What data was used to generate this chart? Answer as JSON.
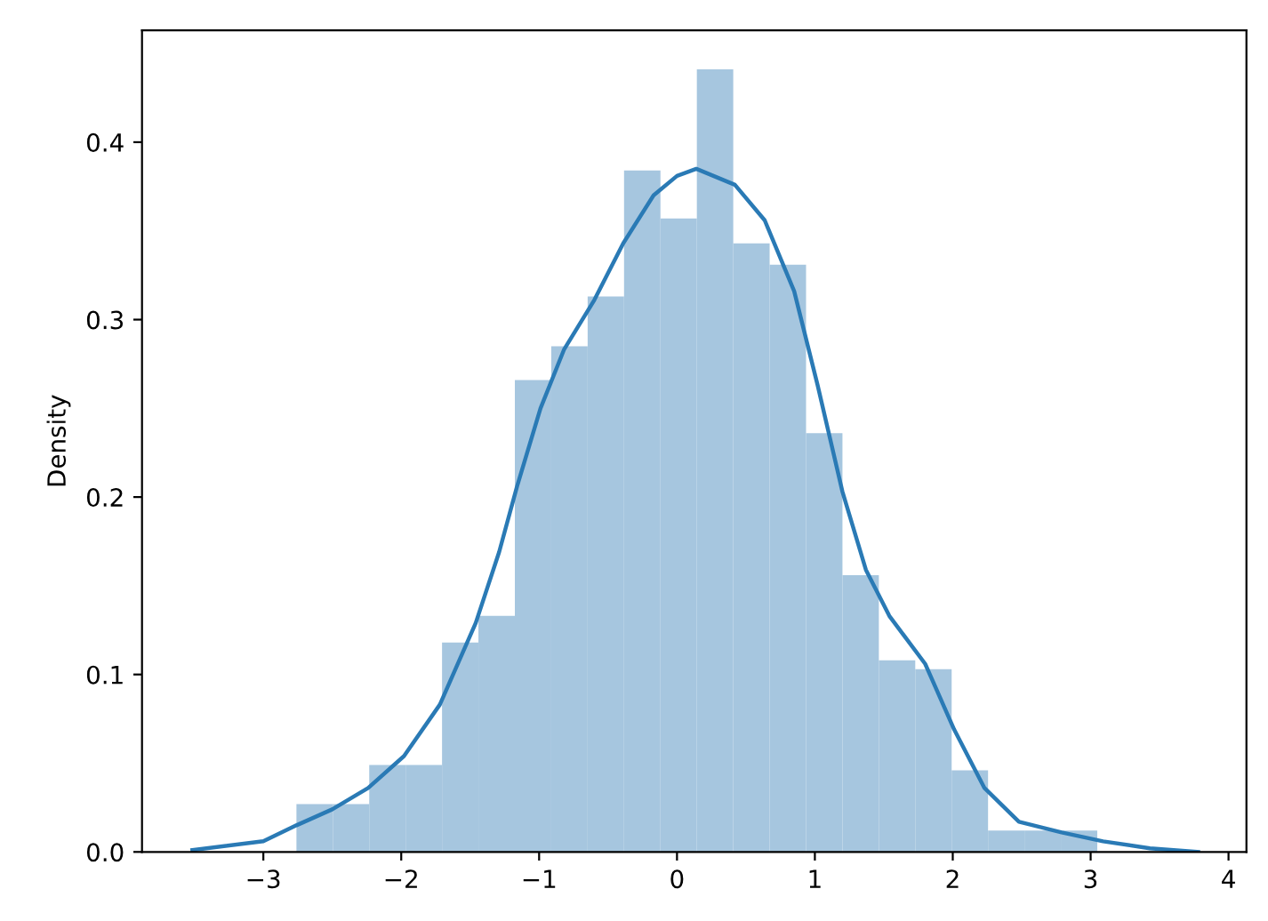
{
  "chart_data": {
    "type": "histogram",
    "ylabel": "Density",
    "xlim": [
      -3.88,
      4.13
    ],
    "ylim": [
      0,
      0.463
    ],
    "xticks": [
      {
        "value": -3,
        "label": "−3"
      },
      {
        "value": -2,
        "label": "−2"
      },
      {
        "value": -1,
        "label": "−1"
      },
      0,
      1,
      2,
      3,
      4
    ],
    "yticks": [
      {
        "value": 0,
        "label": "0.0"
      },
      0.1,
      0.2,
      0.3,
      0.4
    ],
    "grid": false,
    "series": [
      {
        "color": "#a6c6df",
        "bins": [
          -2.76,
          -2.496,
          -2.232,
          -1.968,
          -1.704,
          -1.44,
          -1.176,
          -0.912,
          -0.648,
          -0.384,
          -0.12,
          0.144,
          0.408,
          0.672,
          0.936,
          1.2,
          1.464,
          1.728,
          1.992,
          2.256,
          2.52,
          2.784,
          3.048
        ],
        "values": [
          0.027,
          0.027,
          0.049,
          0.049,
          0.118,
          0.133,
          0.266,
          0.285,
          0.313,
          0.384,
          0.357,
          0.441,
          0.343,
          0.331,
          0.236,
          0.156,
          0.108,
          0.103,
          0.046,
          0.012,
          0.012,
          0.012
        ]
      },
      {
        "type": "line",
        "color": "#2a7ab5",
        "x": [
          -3.515,
          -3.0,
          -2.76,
          -2.5,
          -2.24,
          -1.98,
          -1.72,
          -1.46,
          -1.29,
          -1.16,
          -0.99,
          -0.82,
          -0.6,
          -0.39,
          -0.17,
          0.0,
          0.14,
          0.42,
          0.636,
          0.85,
          1.02,
          1.2,
          1.37,
          1.54,
          1.8,
          2.01,
          2.23,
          2.48,
          2.79,
          3.09,
          3.43,
          3.78
        ],
        "values": [
          0.001,
          0.006,
          0.015,
          0.024,
          0.036,
          0.054,
          0.083,
          0.129,
          0.169,
          0.206,
          0.25,
          0.283,
          0.311,
          0.343,
          0.37,
          0.381,
          0.385,
          0.376,
          0.356,
          0.316,
          0.263,
          0.203,
          0.159,
          0.133,
          0.106,
          0.069,
          0.036,
          0.017,
          0.011,
          0.006,
          0.002,
          0.0
        ]
      }
    ]
  }
}
